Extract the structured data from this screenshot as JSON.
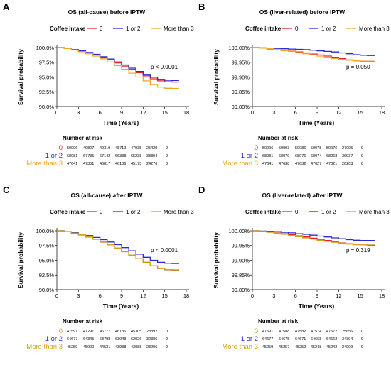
{
  "panels": [
    {
      "letter": "A",
      "risk_title": "Number at risk",
      "chart_data": {
        "type": "line",
        "title": "OS (all-cause) before IPTW",
        "legend_title": "Coffee intake",
        "xlabel": "Time (Years)",
        "ylabel": "Survival probability",
        "xlim": [
          0,
          18
        ],
        "ylim": [
          90.0,
          100.0
        ],
        "x_ticks": [
          "0",
          "3",
          "6",
          "9",
          "12",
          "15",
          "18"
        ],
        "y_ticks": [
          "90.0%",
          "92.5%",
          "95.0%",
          "97.5%",
          "100.0%"
        ],
        "grid": false,
        "legend_position": "top",
        "pvalue": "p < 0.0001",
        "series": [
          {
            "name": "0",
            "color": "#e8202a",
            "x": [
              0,
              1,
              2,
              3,
              4,
              5,
              6,
              7,
              8,
              9,
              10,
              11,
              12,
              13,
              14,
              15,
              16,
              17
            ],
            "y": [
              100,
              99.85,
              99.65,
              99.4,
              99.1,
              98.75,
              98.35,
              97.9,
              97.4,
              96.85,
              96.3,
              95.75,
              95.2,
              94.7,
              94.35,
              94.2,
              94.15,
              94.15
            ]
          },
          {
            "name": "1 or 2",
            "color": "#2b2bd0",
            "x": [
              0,
              1,
              2,
              3,
              4,
              5,
              6,
              7,
              8,
              9,
              10,
              11,
              12,
              13,
              14,
              15,
              16,
              17
            ],
            "y": [
              100,
              99.85,
              99.67,
              99.45,
              99.17,
              98.85,
              98.45,
              98.05,
              97.55,
              97.05,
              96.5,
              95.95,
              95.45,
              94.95,
              94.6,
              94.45,
              94.4,
              94.4
            ]
          },
          {
            "name": "More than 3",
            "color": "#f5a623",
            "x": [
              0,
              1,
              2,
              3,
              4,
              5,
              6,
              7,
              8,
              9,
              10,
              11,
              12,
              13,
              14,
              15,
              16,
              17
            ],
            "y": [
              100,
              99.83,
              99.6,
              99.3,
              98.95,
              98.55,
              98.1,
              97.55,
              96.95,
              96.3,
              95.65,
              95.0,
              94.35,
              93.75,
              93.3,
              93.1,
              93.05,
              93.05
            ]
          }
        ]
      },
      "risk_rows": [
        {
          "label": "0",
          "color": "#e8202a",
          "values": [
            "50096",
            "49807",
            "49319",
            "48719",
            "47935",
            "25420",
            "0"
          ]
        },
        {
          "label": "1 or 2",
          "color": "#2b2bd0",
          "values": [
            "68081",
            "67735",
            "67142",
            "66338",
            "65238",
            "33894",
            "0"
          ]
        },
        {
          "label": "More than 3",
          "color": "#f5a623",
          "values": [
            "47641",
            "47351",
            "46817",
            "46136",
            "45173",
            "24276",
            "0"
          ]
        }
      ]
    },
    {
      "letter": "B",
      "risk_title": "Number at risk",
      "chart_data": {
        "type": "line",
        "title": "OS (liver-related) before IPTW",
        "legend_title": "Coffee intake",
        "xlabel": "Time (Years)",
        "ylabel": "Survival probability",
        "xlim": [
          0,
          18
        ],
        "ylim": [
          99.8,
          100.0
        ],
        "x_ticks": [
          "0",
          "3",
          "6",
          "9",
          "12",
          "15",
          "18"
        ],
        "y_ticks": [
          "99.80%",
          "99.85%",
          "99.90%",
          "99.95%",
          "100.00%"
        ],
        "grid": false,
        "legend_position": "top",
        "pvalue": "p = 0.050",
        "series": [
          {
            "name": "0",
            "color": "#e8202a",
            "x": [
              0,
              1,
              2,
              3,
              4,
              5,
              6,
              7,
              8,
              9,
              10,
              11,
              12,
              13,
              14,
              15,
              16,
              17
            ],
            "y": [
              100,
              99.998,
              99.995,
              99.992,
              99.99,
              99.988,
              99.985,
              99.982,
              99.978,
              99.975,
              99.971,
              99.967,
              99.963,
              99.958,
              99.955,
              99.953,
              99.952,
              99.952
            ]
          },
          {
            "name": "1 or 2",
            "color": "#2b2bd0",
            "x": [
              0,
              1,
              2,
              3,
              4,
              5,
              6,
              7,
              8,
              9,
              10,
              11,
              12,
              13,
              14,
              15,
              16,
              17
            ],
            "y": [
              100,
              99.999,
              99.998,
              99.997,
              99.996,
              99.995,
              99.994,
              99.993,
              99.991,
              99.989,
              99.987,
              99.985,
              99.982,
              99.979,
              99.976,
              99.974,
              99.973,
              99.973
            ]
          },
          {
            "name": "More than 3",
            "color": "#f5a623",
            "x": [
              0,
              1,
              2,
              3,
              4,
              5,
              6,
              7,
              8,
              9,
              10,
              11,
              12,
              13,
              14,
              15,
              16,
              17
            ],
            "y": [
              100,
              99.998,
              99.996,
              99.993,
              99.99,
              99.987,
              99.983,
              99.979,
              99.975,
              99.971,
              99.967,
              99.963,
              99.96,
              99.957,
              99.955,
              99.954,
              99.954,
              99.954
            ]
          }
        ]
      },
      "risk_rows": [
        {
          "label": "0",
          "color": "#e8202a",
          "values": [
            "50096",
            "50093",
            "50086",
            "50078",
            "50076",
            "27095",
            "0"
          ]
        },
        {
          "label": "1 or 2",
          "color": "#2b2bd0",
          "values": [
            "68081",
            "68079",
            "68076",
            "68074",
            "68068",
            "36037",
            "0"
          ]
        },
        {
          "label": "More than 3",
          "color": "#f5a623",
          "values": [
            "47641",
            "47638",
            "47632",
            "47627",
            "47621",
            "26203",
            "0"
          ]
        }
      ]
    },
    {
      "letter": "C",
      "risk_title": "Number at risk",
      "chart_data": {
        "type": "line",
        "title": "OS (all-cause) after IPTW",
        "legend_title": "Coffee intake",
        "xlabel": "Time (Years)",
        "ylabel": "Survival probability",
        "xlim": [
          0,
          18
        ],
        "ylim": [
          90.0,
          100.0
        ],
        "x_ticks": [
          "0",
          "3",
          "6",
          "9",
          "12",
          "15",
          "18"
        ],
        "y_ticks": [
          "90.0%",
          "92.5%",
          "95.0%",
          "97.5%",
          "100.0%"
        ],
        "grid": false,
        "legend_position": "top",
        "pvalue": "p < 0.0001",
        "series": [
          {
            "name": "0",
            "color": "#8b4513",
            "x": [
              0,
              1,
              2,
              3,
              4,
              5,
              6,
              7,
              8,
              9,
              10,
              11,
              12,
              13,
              14,
              15,
              16,
              17
            ],
            "y": [
              100,
              99.83,
              99.6,
              99.3,
              98.95,
              98.55,
              98.1,
              97.6,
              97.05,
              96.45,
              95.85,
              95.25,
              94.65,
              94.05,
              93.6,
              93.4,
              93.35,
              93.35
            ]
          },
          {
            "name": "1 or 2",
            "color": "#2b2bd0",
            "x": [
              0,
              1,
              2,
              3,
              4,
              5,
              6,
              7,
              8,
              9,
              10,
              11,
              12,
              13,
              14,
              15,
              16,
              17
            ],
            "y": [
              100,
              99.86,
              99.68,
              99.45,
              99.18,
              98.87,
              98.5,
              98.1,
              97.65,
              97.15,
              96.6,
              96.05,
              95.5,
              95.0,
              94.65,
              94.5,
              94.45,
              94.45
            ]
          },
          {
            "name": "More than 3",
            "color": "#d4a017",
            "x": [
              0,
              1,
              2,
              3,
              4,
              5,
              6,
              7,
              8,
              9,
              10,
              11,
              12,
              13,
              14,
              15,
              16,
              17
            ],
            "y": [
              100,
              99.84,
              99.62,
              99.33,
              98.98,
              98.58,
              98.13,
              97.62,
              97.07,
              96.47,
              95.87,
              95.27,
              94.67,
              94.07,
              93.62,
              93.42,
              93.38,
              93.38
            ]
          }
        ]
      },
      "risk_rows": [
        {
          "label": "0",
          "color": "#d4a017",
          "values": [
            "47591",
            "47291",
            "46777",
            "46136",
            "45305",
            "23892",
            "0"
          ]
        },
        {
          "label": "1 or 2",
          "color": "#2b2bd0",
          "values": [
            "64677",
            "64345",
            "63798",
            "63048",
            "62026",
            "32386",
            "0"
          ]
        },
        {
          "label": "More than 3",
          "color": "#d4a017",
          "values": [
            "45259",
            "45000",
            "44531",
            "43938",
            "43088",
            "23206",
            "0"
          ]
        }
      ]
    },
    {
      "letter": "D",
      "risk_title": "Number at risk",
      "chart_data": {
        "type": "line",
        "title": "OS (liver-related) after IPTW",
        "legend_title": "Coffee intake",
        "xlabel": "Time (Years)",
        "ylabel": "Survival probability",
        "xlim": [
          0,
          18
        ],
        "ylim": [
          99.8,
          100.0
        ],
        "x_ticks": [
          "0",
          "3",
          "6",
          "9",
          "12",
          "15",
          "18"
        ],
        "y_ticks": [
          "99.80%",
          "99.85%",
          "99.90%",
          "99.95%",
          "100.00%"
        ],
        "grid": false,
        "legend_position": "top",
        "pvalue": "p = 0.319",
        "series": [
          {
            "name": "0",
            "color": "#e8202a",
            "x": [
              0,
              1,
              2,
              3,
              4,
              5,
              6,
              7,
              8,
              9,
              10,
              11,
              12,
              13,
              14,
              15,
              16,
              17
            ],
            "y": [
              100,
              99.998,
              99.996,
              99.993,
              99.99,
              99.987,
              99.983,
              99.979,
              99.975,
              99.971,
              99.967,
              99.963,
              99.959,
              99.956,
              99.953,
              99.952,
              99.951,
              99.951
            ]
          },
          {
            "name": "1 or 2",
            "color": "#2b2bd0",
            "x": [
              0,
              1,
              2,
              3,
              4,
              5,
              6,
              7,
              8,
              9,
              10,
              11,
              12,
              13,
              14,
              15,
              16,
              17
            ],
            "y": [
              100,
              99.999,
              99.998,
              99.997,
              99.995,
              99.993,
              99.99,
              99.988,
              99.985,
              99.982,
              99.979,
              99.976,
              99.973,
              99.97,
              99.968,
              99.967,
              99.967,
              99.967
            ]
          },
          {
            "name": "More than 3",
            "color": "#d4a017",
            "x": [
              0,
              1,
              2,
              3,
              4,
              5,
              6,
              7,
              8,
              9,
              10,
              11,
              12,
              13,
              14,
              15,
              16,
              17
            ],
            "y": [
              100,
              99.998,
              99.995,
              99.992,
              99.988,
              99.984,
              99.98,
              99.976,
              99.972,
              99.968,
              99.964,
              99.961,
              99.958,
              99.955,
              99.953,
              99.952,
              99.952,
              99.952
            ]
          }
        ]
      },
      "risk_rows": [
        {
          "label": "0",
          "color": "#d4a017",
          "values": [
            "47591",
            "47588",
            "47582",
            "47574",
            "47572",
            "25656",
            "0"
          ]
        },
        {
          "label": "1 or 2",
          "color": "#2b2bd0",
          "values": [
            "64677",
            "64675",
            "64671",
            "64668",
            "64662",
            "34394",
            "0"
          ]
        },
        {
          "label": "More than 3",
          "color": "#d4a017",
          "values": [
            "45259",
            "45257",
            "45252",
            "45248",
            "45242",
            "24909",
            "0"
          ]
        }
      ]
    }
  ]
}
